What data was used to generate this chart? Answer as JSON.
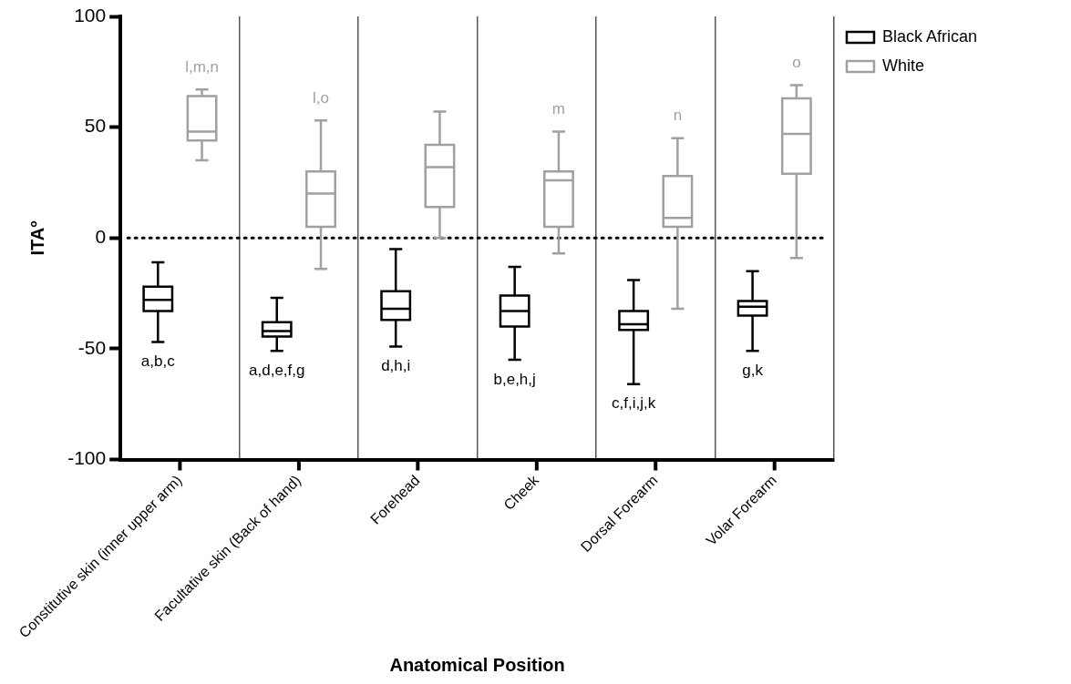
{
  "chart_data": {
    "type": "box",
    "categories": [
      "Constitutive skin (inner upper arm)",
      "Facultative skin (Back of hand)",
      "Forehead",
      "Cheek",
      "Dorsal Forearm",
      "Volar Forearm"
    ],
    "series": [
      {
        "name": "Black African",
        "color": "#000000",
        "boxes": [
          {
            "low": -47,
            "q1": -33,
            "median": -28,
            "q3": -22,
            "high": -11
          },
          {
            "low": -51,
            "q1": -44.5,
            "median": -42,
            "q3": -38,
            "high": -27
          },
          {
            "low": -49,
            "q1": -37,
            "median": -32,
            "q3": -24,
            "high": -5
          },
          {
            "low": -55,
            "q1": -40,
            "median": -33,
            "q3": -26,
            "high": -13
          },
          {
            "low": -66,
            "q1": -41.5,
            "median": -39,
            "q3": -33,
            "high": -19
          },
          {
            "low": -51,
            "q1": -35,
            "median": -31,
            "q3": -28.5,
            "high": -15
          }
        ]
      },
      {
        "name": "White",
        "color": "#a0a0a0",
        "boxes": [
          {
            "low": 35,
            "q1": 44,
            "median": 48,
            "q3": 64,
            "high": 67
          },
          {
            "low": -14,
            "q1": 5,
            "median": 20,
            "q3": 30,
            "high": 53
          },
          {
            "low": 0,
            "q1": 14,
            "median": 32,
            "q3": 42,
            "high": 57
          },
          {
            "low": -7,
            "q1": 5,
            "median": 26,
            "q3": 30,
            "high": 48
          },
          {
            "low": -32,
            "q1": 5,
            "median": 9,
            "q3": 28,
            "high": 45
          },
          {
            "low": -9,
            "q1": 29,
            "median": 47,
            "q3": 63,
            "high": 69
          }
        ]
      }
    ],
    "xlabel": "Anatomical Position",
    "ylabel": "ITA°",
    "ylim": [
      -100,
      100
    ],
    "yticks": [
      -100,
      -50,
      0,
      50,
      100
    ],
    "ref_lines": [
      {
        "axis": "y",
        "value": 0,
        "color": "#000000",
        "line_style": "dotted"
      }
    ],
    "grid": "x",
    "legend": "top right",
    "annotations": [
      "a,b,c",
      "l,m,n",
      "a,d,e,f,g",
      "l,o",
      "d,h,i",
      "b,e,h,j",
      "m",
      "c,f,i,j,k",
      "n",
      "g,k",
      "o"
    ]
  }
}
